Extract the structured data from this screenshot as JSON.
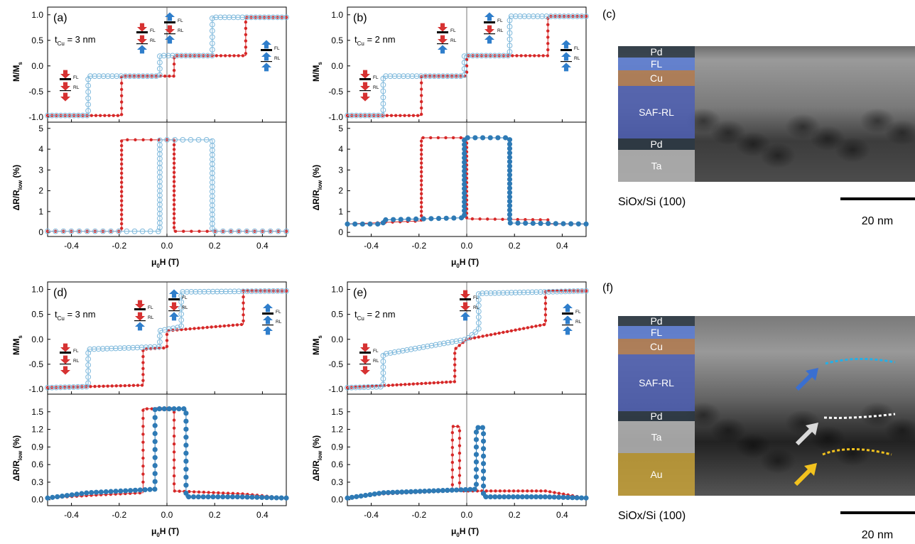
{
  "figure": {
    "panels": [
      {
        "id": "a",
        "label": "(a)",
        "tcu_value": " = 3 nm"
      },
      {
        "id": "b",
        "label": "(b)",
        "tcu_value": " = 2 nm"
      },
      {
        "id": "d",
        "label": "(d)",
        "tcu_value": " = 3 nm"
      },
      {
        "id": "e",
        "label": "(e)",
        "tcu_value": " = 2 nm"
      }
    ],
    "tcu_prefix": "t",
    "tcu_sub": "Cu",
    "fl": "FL",
    "rl": "RL",
    "xlabel_mu": "μ",
    "xlabel_sub": "0",
    "xlabel_rest": "H (T)",
    "ylabel_m": "M/M",
    "ylabel_m_sub": "s",
    "ylabel_r": "ΔR/R",
    "ylabel_r_sub": "low",
    "ylabel_r_unit": " (%)",
    "sem_c": {
      "label": "(c)",
      "layers": [
        "Pd",
        "FL",
        "Cu",
        "SAF-RL",
        "Pd",
        "Ta"
      ],
      "substrate": "SiOx/Si (100)",
      "scale": "20 nm"
    },
    "sem_f": {
      "label": "(f)",
      "layers": [
        "Pd",
        "FL",
        "Cu",
        "SAF-RL",
        "Pd",
        "Ta",
        "Au"
      ],
      "substrate": "SiOx/Si (100)",
      "scale": "20 nm"
    },
    "colors": {
      "red": "#d62828",
      "lightblue": "#7fb9dc",
      "darkblue": "#2e7ab5",
      "arrow_blue": "#2f7ecb",
      "arrow_red": "#d63232",
      "pd": "#2b3844",
      "fl": "#5a7cd6",
      "cu": "#b27a4f",
      "saf": "#4d5fb4",
      "ta": "#b8b8b8",
      "au": "#c9a33a"
    }
  },
  "chart_data": [
    {
      "panel": "(a)",
      "type": "line",
      "xlim": [
        -0.5,
        0.5
      ],
      "xticks": [
        -0.4,
        -0.2,
        0.0,
        0.2,
        0.4
      ],
      "top": {
        "ylim": [
          -1.1,
          1.15
        ],
        "yticks": [
          -1.0,
          -0.5,
          0.0,
          0.5,
          1.0
        ],
        "series": [
          {
            "color": "red",
            "marker": "filled",
            "x": [
              -0.5,
              -0.19,
              -0.19,
              0.03,
              0.03,
              0.33,
              0.33,
              0.5
            ],
            "y": [
              -0.97,
              -0.97,
              -0.2,
              -0.2,
              0.2,
              0.2,
              0.95,
              0.95
            ]
          },
          {
            "color": "lightblue",
            "marker": "open",
            "x": [
              -0.5,
              -0.33,
              -0.33,
              -0.03,
              -0.03,
              0.19,
              0.19,
              0.5
            ],
            "y": [
              -0.97,
              -0.97,
              -0.2,
              -0.2,
              0.2,
              0.2,
              0.95,
              0.95
            ]
          }
        ]
      },
      "bottom": {
        "ylim": [
          -0.2,
          5.3
        ],
        "yticks": [
          0,
          1,
          2,
          3,
          4,
          5
        ],
        "series": [
          {
            "color": "red",
            "marker": "filled",
            "x": [
              -0.5,
              -0.19,
              -0.19,
              0.03,
              0.03,
              0.5
            ],
            "y": [
              0.05,
              0.05,
              4.45,
              4.45,
              0.05,
              0.05
            ]
          },
          {
            "color": "lightblue",
            "marker": "open",
            "x": [
              -0.5,
              -0.03,
              -0.03,
              0.19,
              0.19,
              0.5
            ],
            "y": [
              0.05,
              0.05,
              4.45,
              4.45,
              0.05,
              0.05
            ]
          }
        ]
      }
    },
    {
      "panel": "(b)",
      "type": "line",
      "xlim": [
        -0.5,
        0.5
      ],
      "xticks": [
        -0.4,
        -0.2,
        0.0,
        0.2,
        0.4
      ],
      "top": {
        "ylim": [
          -1.1,
          1.15
        ],
        "yticks": [
          -1.0,
          -0.5,
          0.0,
          0.5,
          1.0
        ],
        "series": [
          {
            "color": "red",
            "marker": "filled",
            "x": [
              -0.5,
              -0.19,
              -0.19,
              0.0,
              0.0,
              0.34,
              0.34,
              0.5
            ],
            "y": [
              -0.97,
              -0.97,
              -0.2,
              -0.2,
              0.2,
              0.2,
              0.97,
              0.97
            ]
          },
          {
            "color": "lightblue",
            "marker": "open",
            "x": [
              -0.5,
              -0.35,
              -0.35,
              -0.01,
              -0.01,
              0.18,
              0.18,
              0.5
            ],
            "y": [
              -0.97,
              -0.97,
              -0.2,
              -0.2,
              0.2,
              0.2,
              0.97,
              0.97
            ]
          }
        ]
      },
      "bottom": {
        "ylim": [
          -0.2,
          5.3
        ],
        "yticks": [
          0,
          1,
          2,
          3,
          4,
          5
        ],
        "series": [
          {
            "color": "red",
            "marker": "filled",
            "x": [
              -0.5,
              -0.19,
              -0.19,
              0.0,
              0.0,
              0.34,
              0.34,
              0.5
            ],
            "y": [
              0.4,
              0.55,
              4.55,
              4.55,
              0.65,
              0.6,
              0.4,
              0.4
            ]
          },
          {
            "color": "darkblue",
            "marker": "filled",
            "x": [
              -0.5,
              -0.35,
              -0.35,
              -0.01,
              -0.01,
              0.18,
              0.18,
              0.5
            ],
            "y": [
              0.4,
              0.4,
              0.6,
              0.7,
              4.55,
              4.55,
              0.45,
              0.4
            ]
          }
        ]
      }
    },
    {
      "panel": "(d)",
      "type": "line",
      "xlim": [
        -0.5,
        0.5
      ],
      "xticks": [
        -0.4,
        -0.2,
        0.0,
        0.2,
        0.4
      ],
      "top": {
        "ylim": [
          -1.1,
          1.15
        ],
        "yticks": [
          -1.0,
          -0.5,
          0.0,
          0.5,
          1.0
        ],
        "series": [
          {
            "color": "red",
            "marker": "filled",
            "x": [
              -0.5,
              -0.1,
              -0.1,
              0.0,
              0.0,
              0.32,
              0.32,
              0.5
            ],
            "y": [
              -0.97,
              -0.92,
              -0.2,
              -0.17,
              0.17,
              0.3,
              0.97,
              0.97
            ]
          },
          {
            "color": "lightblue",
            "marker": "open",
            "x": [
              -0.5,
              -0.33,
              -0.33,
              -0.03,
              -0.03,
              0.06,
              0.06,
              0.5
            ],
            "y": [
              -0.97,
              -0.95,
              -0.2,
              -0.15,
              0.17,
              0.25,
              0.95,
              0.97
            ]
          }
        ]
      },
      "bottom": {
        "ylim": [
          -0.1,
          1.8
        ],
        "yticks": [
          0.0,
          0.3,
          0.6,
          0.9,
          1.2,
          1.5
        ],
        "series": [
          {
            "color": "red",
            "marker": "filled",
            "x": [
              -0.5,
              -0.3,
              -0.1,
              -0.1,
              0.03,
              0.03,
              0.32,
              0.5
            ],
            "y": [
              0.03,
              0.08,
              0.12,
              1.55,
              1.55,
              0.15,
              0.1,
              0.03
            ]
          },
          {
            "color": "darkblue",
            "marker": "filled",
            "x": [
              -0.5,
              -0.33,
              -0.05,
              -0.05,
              0.08,
              0.08,
              0.3,
              0.5
            ],
            "y": [
              0.03,
              0.12,
              0.18,
              1.55,
              1.55,
              0.05,
              0.05,
              0.03
            ]
          }
        ]
      }
    },
    {
      "panel": "(e)",
      "type": "line",
      "xlim": [
        -0.5,
        0.5
      ],
      "xticks": [
        -0.4,
        -0.2,
        0.0,
        0.2,
        0.4
      ],
      "top": {
        "ylim": [
          -1.1,
          1.15
        ],
        "yticks": [
          -1.0,
          -0.5,
          0.0,
          0.5,
          1.0
        ],
        "series": [
          {
            "color": "red",
            "marker": "filled",
            "x": [
              -0.5,
              -0.05,
              -0.05,
              0.0,
              0.33,
              0.33,
              0.5
            ],
            "y": [
              -0.97,
              -0.85,
              -0.2,
              0.0,
              0.3,
              0.97,
              0.97
            ]
          },
          {
            "color": "lightblue",
            "marker": "open",
            "x": [
              -0.5,
              -0.35,
              -0.35,
              0.0,
              0.05,
              0.05,
              0.5
            ],
            "y": [
              -0.97,
              -0.95,
              -0.3,
              0.0,
              0.2,
              0.92,
              0.97
            ]
          }
        ]
      },
      "bottom": {
        "ylim": [
          -0.1,
          1.8
        ],
        "yticks": [
          0.0,
          0.3,
          0.6,
          0.9,
          1.2,
          1.5
        ],
        "series": [
          {
            "color": "red",
            "marker": "filled",
            "x": [
              -0.5,
              -0.35,
              -0.06,
              -0.06,
              -0.03,
              -0.03,
              0.33,
              0.5
            ],
            "y": [
              0.03,
              0.1,
              0.15,
              1.25,
              1.25,
              0.15,
              0.15,
              0.03
            ]
          },
          {
            "color": "darkblue",
            "marker": "filled",
            "x": [
              -0.5,
              -0.35,
              0.04,
              0.04,
              0.07,
              0.07,
              0.33,
              0.5
            ],
            "y": [
              0.03,
              0.12,
              0.18,
              1.23,
              1.23,
              0.05,
              0.05,
              0.03
            ]
          }
        ]
      }
    }
  ]
}
